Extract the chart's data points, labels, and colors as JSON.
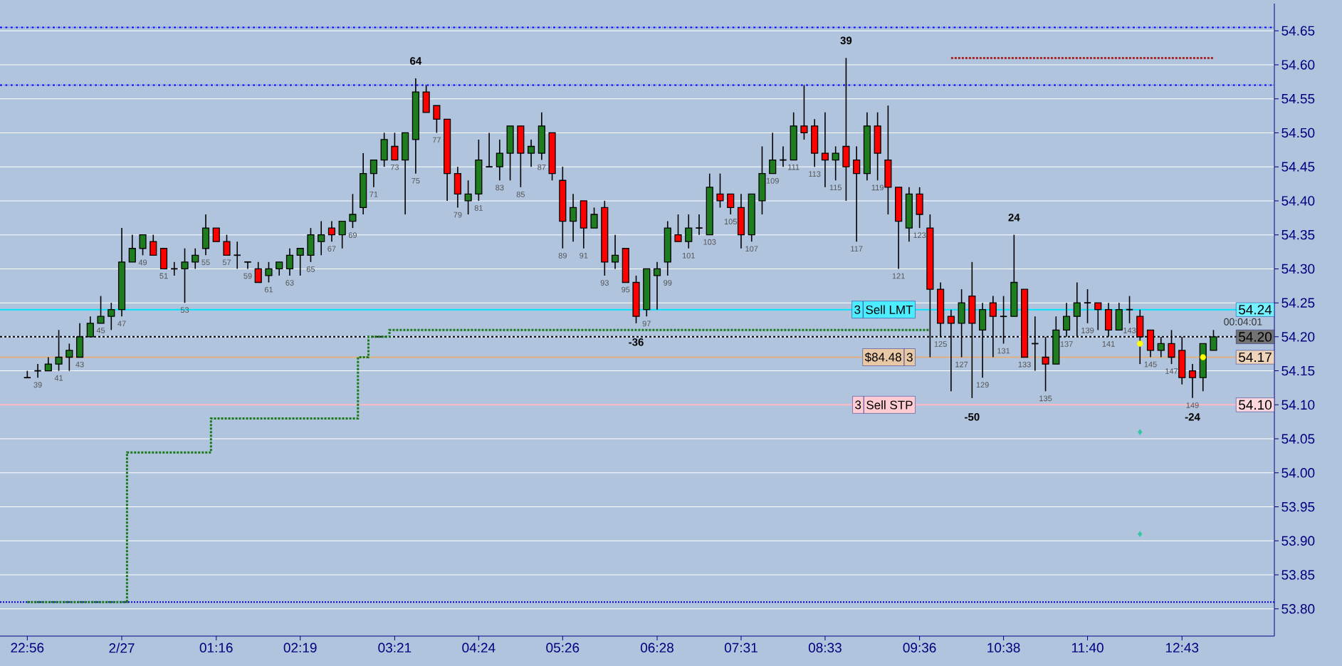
{
  "chart_data": {
    "type": "candlestick",
    "categories": [
      "22:56",
      null,
      null,
      null,
      null,
      null,
      null,
      null,
      null,
      "2/27",
      null,
      null,
      null,
      null,
      null,
      null,
      null,
      null,
      "01:16",
      null,
      null,
      null,
      null,
      null,
      null,
      null,
      "02:19",
      null,
      null,
      null,
      null,
      null,
      null,
      null,
      null,
      "03:21",
      null,
      null,
      null,
      null,
      null,
      null,
      null,
      "04:24",
      null,
      null,
      null,
      null,
      null,
      null,
      null,
      "05:26",
      null,
      null,
      null,
      null,
      null,
      null,
      null,
      null,
      "06:28",
      null,
      null,
      null,
      null,
      null,
      null,
      null,
      "07:31",
      null,
      null,
      null,
      null,
      null,
      null,
      null,
      "08:33",
      null,
      null,
      null,
      null,
      null,
      null,
      null,
      null,
      "09:36",
      null,
      null,
      null,
      null,
      null,
      null,
      null,
      "10:38",
      null,
      null,
      null,
      null,
      null,
      null,
      null,
      "11:40",
      null,
      null,
      null,
      null,
      null,
      null,
      null,
      null,
      "12:43",
      null,
      null,
      null
    ],
    "ohlc": [
      [
        54.14,
        54.15,
        54.14,
        54.14
      ],
      [
        54.15,
        54.16,
        54.14,
        54.15
      ],
      [
        54.15,
        54.17,
        54.15,
        54.16
      ],
      [
        54.16,
        54.21,
        54.15,
        54.17
      ],
      [
        54.17,
        54.19,
        54.15,
        54.18
      ],
      [
        54.17,
        54.22,
        54.17,
        54.2
      ],
      [
        54.2,
        54.23,
        54.2,
        54.22
      ],
      [
        54.22,
        54.26,
        54.22,
        54.23
      ],
      [
        54.23,
        54.25,
        54.21,
        54.24
      ],
      [
        54.24,
        54.36,
        54.23,
        54.31
      ],
      [
        54.31,
        54.35,
        54.31,
        54.33
      ],
      [
        54.33,
        54.35,
        54.32,
        54.35
      ],
      [
        54.34,
        54.35,
        54.32,
        54.32
      ],
      [
        54.33,
        54.33,
        54.3,
        54.3
      ],
      [
        54.3,
        54.31,
        54.29,
        54.3
      ],
      [
        54.3,
        54.33,
        54.25,
        54.31
      ],
      [
        54.31,
        54.33,
        54.3,
        54.32
      ],
      [
        54.33,
        54.38,
        54.32,
        54.36
      ],
      [
        54.36,
        54.36,
        54.34,
        54.34
      ],
      [
        54.34,
        54.35,
        54.32,
        54.32
      ],
      [
        54.32,
        54.34,
        54.3,
        54.32
      ],
      [
        54.31,
        54.31,
        54.3,
        54.31
      ],
      [
        54.3,
        54.31,
        54.28,
        54.28
      ],
      [
        54.29,
        54.31,
        54.28,
        54.3
      ],
      [
        54.3,
        54.31,
        54.29,
        54.31
      ],
      [
        54.3,
        54.33,
        54.29,
        54.32
      ],
      [
        54.32,
        54.33,
        54.29,
        54.33
      ],
      [
        54.32,
        54.36,
        54.31,
        54.35
      ],
      [
        54.34,
        54.37,
        54.32,
        54.35
      ],
      [
        54.36,
        54.37,
        54.34,
        54.35
      ],
      [
        54.35,
        54.37,
        54.33,
        54.37
      ],
      [
        54.37,
        54.41,
        54.36,
        54.38
      ],
      [
        54.39,
        54.47,
        54.38,
        54.44
      ],
      [
        54.44,
        54.46,
        54.42,
        54.46
      ],
      [
        54.46,
        54.5,
        54.45,
        54.49
      ],
      [
        54.48,
        54.5,
        54.46,
        54.46
      ],
      [
        54.46,
        54.5,
        54.38,
        54.5
      ],
      [
        54.49,
        54.58,
        54.44,
        54.56
      ],
      [
        54.56,
        54.57,
        54.53,
        54.53
      ],
      [
        54.54,
        54.54,
        54.5,
        54.52
      ],
      [
        54.52,
        54.52,
        54.4,
        54.44
      ],
      [
        54.44,
        54.45,
        54.39,
        54.41
      ],
      [
        54.4,
        54.43,
        54.38,
        54.41
      ],
      [
        54.41,
        54.49,
        54.4,
        54.46
      ],
      [
        54.45,
        54.5,
        54.45,
        54.45
      ],
      [
        54.45,
        54.49,
        54.43,
        54.47
      ],
      [
        54.47,
        54.51,
        54.43,
        54.51
      ],
      [
        54.51,
        54.51,
        54.42,
        54.47
      ],
      [
        54.47,
        54.49,
        54.45,
        54.48
      ],
      [
        54.47,
        54.53,
        54.46,
        54.51
      ],
      [
        54.5,
        54.5,
        54.43,
        54.44
      ],
      [
        54.43,
        54.45,
        54.33,
        54.37
      ],
      [
        54.37,
        54.41,
        54.34,
        54.39
      ],
      [
        54.4,
        54.4,
        54.33,
        54.36
      ],
      [
        54.36,
        54.39,
        54.36,
        54.38
      ],
      [
        54.39,
        54.4,
        54.29,
        54.31
      ],
      [
        54.31,
        54.35,
        54.3,
        54.32
      ],
      [
        54.33,
        54.33,
        54.28,
        54.28
      ],
      [
        54.28,
        54.29,
        54.22,
        54.23
      ],
      [
        54.24,
        54.3,
        54.23,
        54.3
      ],
      [
        54.29,
        54.31,
        54.24,
        54.3
      ],
      [
        54.31,
        54.37,
        54.29,
        54.36
      ],
      [
        54.35,
        54.38,
        54.34,
        54.34
      ],
      [
        54.34,
        54.38,
        54.33,
        54.36
      ],
      [
        54.36,
        54.38,
        54.35,
        54.36
      ],
      [
        54.35,
        54.44,
        54.35,
        54.42
      ],
      [
        54.41,
        54.44,
        54.39,
        54.4
      ],
      [
        54.41,
        54.41,
        54.38,
        54.39
      ],
      [
        54.39,
        54.41,
        54.33,
        54.35
      ],
      [
        54.35,
        54.41,
        54.34,
        54.41
      ],
      [
        54.4,
        54.48,
        54.38,
        54.44
      ],
      [
        54.44,
        54.5,
        54.44,
        54.46
      ],
      [
        54.46,
        54.48,
        54.45,
        54.46
      ],
      [
        54.46,
        54.53,
        54.46,
        54.51
      ],
      [
        54.51,
        54.57,
        54.49,
        54.5
      ],
      [
        54.51,
        54.52,
        54.45,
        54.47
      ],
      [
        54.47,
        54.53,
        54.42,
        54.46
      ],
      [
        54.46,
        54.48,
        54.43,
        54.47
      ],
      [
        54.48,
        54.61,
        54.4,
        54.45
      ],
      [
        54.46,
        54.48,
        54.34,
        54.44
      ],
      [
        54.44,
        54.53,
        54.43,
        54.51
      ],
      [
        54.51,
        54.53,
        54.43,
        54.47
      ],
      [
        54.46,
        54.54,
        54.38,
        54.42
      ],
      [
        54.42,
        54.42,
        54.3,
        54.37
      ],
      [
        54.36,
        54.42,
        54.34,
        54.41
      ],
      [
        54.41,
        54.42,
        54.36,
        54.38
      ],
      [
        54.36,
        54.38,
        54.17,
        54.27
      ],
      [
        54.27,
        54.28,
        54.2,
        54.22
      ],
      [
        54.23,
        54.24,
        54.12,
        54.22
      ],
      [
        54.22,
        54.27,
        54.17,
        54.25
      ],
      [
        54.26,
        54.31,
        54.11,
        54.22
      ],
      [
        54.21,
        54.25,
        54.14,
        54.24
      ],
      [
        54.25,
        54.26,
        54.17,
        54.23
      ],
      [
        54.23,
        54.26,
        54.19,
        54.23
      ],
      [
        54.23,
        54.35,
        54.23,
        54.28
      ],
      [
        54.27,
        54.27,
        54.17,
        54.17
      ],
      [
        54.19,
        54.23,
        54.15,
        54.19
      ],
      [
        54.17,
        54.2,
        54.12,
        54.16
      ],
      [
        54.16,
        54.23,
        54.16,
        54.21
      ],
      [
        54.21,
        54.25,
        54.2,
        54.23
      ],
      [
        54.23,
        54.28,
        54.2,
        54.25
      ],
      [
        54.25,
        54.27,
        54.22,
        54.25
      ],
      [
        54.25,
        54.25,
        54.21,
        54.24
      ],
      [
        54.24,
        54.25,
        54.2,
        54.21
      ],
      [
        54.21,
        54.25,
        54.21,
        54.24
      ],
      [
        54.24,
        54.26,
        54.22,
        54.24
      ],
      [
        54.23,
        54.24,
        54.16,
        54.2
      ],
      [
        54.21,
        54.21,
        54.17,
        54.18
      ],
      [
        54.18,
        54.2,
        54.17,
        54.19
      ],
      [
        54.19,
        54.21,
        54.16,
        54.17
      ],
      [
        54.18,
        54.2,
        54.13,
        54.14
      ],
      [
        54.15,
        54.16,
        54.11,
        54.14
      ],
      [
        54.14,
        54.19,
        54.12,
        54.19
      ],
      [
        54.18,
        54.21,
        54.18,
        54.2
      ]
    ],
    "colors": [
      "#000000",
      "#000000",
      "#1e7d1e",
      "#1e7d1e",
      "#1e7d1e",
      "#1e7d1e",
      "#1e7d1e",
      "#1e7d1e",
      "#1e7d1e",
      "#1e7d1e",
      "#1e7d1e",
      "#1e7d1e",
      "#ff0000",
      "#ff0000",
      "#000000",
      "#1e7d1e",
      "#1e7d1e",
      "#1e7d1e",
      "#ff0000",
      "#ff0000",
      "#000000",
      "#000000",
      "#ff0000",
      "#1e7d1e",
      "#1e7d1e",
      "#1e7d1e",
      "#1e7d1e",
      "#1e7d1e",
      "#1e7d1e",
      "#ff0000",
      "#1e7d1e",
      "#1e7d1e",
      "#1e7d1e",
      "#1e7d1e",
      "#1e7d1e",
      "#ff0000",
      "#1e7d1e",
      "#1e7d1e",
      "#ff0000",
      "#ff0000",
      "#ff0000",
      "#ff0000",
      "#1e7d1e",
      "#1e7d1e",
      "#000000",
      "#1e7d1e",
      "#1e7d1e",
      "#ff0000",
      "#1e7d1e",
      "#1e7d1e",
      "#ff0000",
      "#ff0000",
      "#1e7d1e",
      "#ff0000",
      "#1e7d1e",
      "#ff0000",
      "#1e7d1e",
      "#ff0000",
      "#ff0000",
      "#1e7d1e",
      "#1e7d1e",
      "#1e7d1e",
      "#ff0000",
      "#1e7d1e",
      "#000000",
      "#1e7d1e",
      "#ff0000",
      "#ff0000",
      "#ff0000",
      "#1e7d1e",
      "#1e7d1e",
      "#1e7d1e",
      "#000000",
      "#1e7d1e",
      "#ff0000",
      "#ff0000",
      "#ff0000",
      "#1e7d1e",
      "#ff0000",
      "#ff0000",
      "#1e7d1e",
      "#ff0000",
      "#ff0000",
      "#ff0000",
      "#1e7d1e",
      "#ff0000",
      "#ff0000",
      "#ff0000",
      "#ff0000",
      "#1e7d1e",
      "#ff0000",
      "#1e7d1e",
      "#ff0000",
      "#000000",
      "#1e7d1e",
      "#ff0000",
      "#000000",
      "#ff0000",
      "#1e7d1e",
      "#1e7d1e",
      "#1e7d1e",
      "#000000",
      "#ff0000",
      "#ff0000",
      "#1e7d1e",
      "#000000",
      "#ff0000",
      "#ff0000",
      "#1e7d1e",
      "#ff0000",
      "#ff0000",
      "#ff0000",
      "#1e7d1e",
      "#1e7d1e"
    ],
    "value_labels": [
      null,
      "39",
      null,
      "41",
      null,
      "43",
      null,
      "45",
      null,
      "47",
      null,
      "49",
      null,
      "51",
      null,
      "53",
      null,
      "55",
      null,
      "57",
      null,
      "59",
      null,
      "61",
      null,
      "63",
      null,
      "65",
      null,
      "67",
      null,
      "69",
      null,
      "71",
      null,
      "73",
      null,
      "75",
      null,
      "77",
      null,
      "79",
      null,
      "81",
      null,
      "83",
      null,
      "85",
      null,
      "87",
      null,
      "89",
      null,
      "91",
      null,
      "93",
      null,
      "95",
      null,
      "97",
      null,
      "99",
      null,
      "101",
      null,
      "103",
      null,
      "105",
      null,
      "107",
      null,
      "109",
      null,
      "111",
      null,
      "113",
      null,
      "115",
      null,
      "117",
      null,
      "119",
      null,
      "121",
      null,
      "123",
      null,
      "125",
      null,
      "127",
      null,
      "129",
      null,
      "131",
      null,
      "133",
      null,
      "135",
      null,
      "137",
      null,
      "139",
      null,
      "141",
      null,
      "143",
      null,
      "145",
      null,
      "147",
      null,
      "149",
      null,
      null
    ],
    "series": [
      {
        "type": "step",
        "color": "#1a7a1a",
        "line_style": "dotted",
        "values": [
          53.81,
          53.81,
          53.81,
          53.81,
          53.81,
          53.81,
          53.81,
          53.81,
          53.81,
          53.81,
          54.03,
          54.03,
          54.03,
          54.03,
          54.03,
          54.03,
          54.03,
          54.03,
          54.08,
          54.08,
          54.08,
          54.08,
          54.08,
          54.08,
          54.08,
          54.08,
          54.08,
          54.08,
          54.08,
          54.08,
          54.08,
          54.08,
          54.17,
          54.2,
          54.2,
          54.21,
          54.21,
          54.21,
          54.21,
          54.21,
          54.21,
          54.21,
          54.21,
          54.21,
          54.21,
          54.21,
          54.21,
          54.21,
          54.21,
          54.21,
          54.21,
          54.21,
          54.21,
          54.21,
          54.21,
          54.21,
          54.21,
          54.21,
          54.21,
          54.21,
          54.21,
          54.21,
          54.21,
          54.21,
          54.21,
          54.21,
          54.21,
          54.21,
          54.21,
          54.21,
          54.21,
          54.21,
          54.21,
          54.21,
          54.21,
          54.21,
          54.21,
          54.21,
          54.21,
          54.21,
          54.21,
          54.21,
          54.21,
          54.21,
          54.21,
          54.21,
          54.21,
          null,
          null,
          null,
          null,
          null,
          null,
          null,
          null,
          null,
          null,
          null,
          null,
          null,
          null,
          null,
          null,
          null,
          null,
          null,
          null,
          null,
          null,
          null,
          null,
          null,
          null,
          null
        ]
      },
      {
        "type": "line",
        "color": "#a52a2a",
        "line_style": "dotted",
        "values": [
          null,
          null,
          null,
          null,
          null,
          null,
          null,
          null,
          null,
          null,
          null,
          null,
          null,
          null,
          null,
          null,
          null,
          null,
          null,
          null,
          null,
          null,
          null,
          null,
          null,
          null,
          null,
          null,
          null,
          null,
          null,
          null,
          null,
          null,
          null,
          null,
          null,
          null,
          null,
          null,
          null,
          null,
          null,
          null,
          null,
          null,
          null,
          null,
          null,
          null,
          null,
          null,
          null,
          null,
          null,
          null,
          null,
          null,
          null,
          null,
          null,
          null,
          null,
          null,
          null,
          null,
          null,
          null,
          null,
          null,
          null,
          null,
          null,
          null,
          null,
          null,
          null,
          null,
          null,
          null,
          null,
          null,
          null,
          null,
          null,
          null,
          null,
          null,
          54.61,
          54.61,
          54.61,
          54.61,
          54.61,
          54.61,
          54.61,
          54.61,
          54.61,
          54.61,
          54.61,
          54.61,
          54.61,
          54.61,
          54.61,
          54.61,
          54.61,
          54.61,
          54.61,
          54.61,
          54.61,
          54.61,
          54.61,
          54.61,
          54.61,
          54.61
        ]
      },
      {
        "type": "scatter",
        "color": "#ffff00",
        "marker": "circle",
        "values": [
          null,
          null,
          null,
          null,
          null,
          null,
          null,
          null,
          null,
          null,
          null,
          null,
          null,
          null,
          null,
          null,
          null,
          null,
          null,
          null,
          null,
          null,
          null,
          null,
          null,
          null,
          null,
          null,
          null,
          null,
          null,
          null,
          null,
          null,
          null,
          null,
          null,
          null,
          null,
          null,
          null,
          null,
          null,
          null,
          null,
          null,
          null,
          null,
          null,
          null,
          null,
          null,
          null,
          null,
          null,
          null,
          null,
          null,
          null,
          null,
          null,
          null,
          null,
          null,
          null,
          null,
          null,
          null,
          null,
          null,
          null,
          null,
          null,
          null,
          null,
          null,
          null,
          null,
          null,
          null,
          null,
          null,
          null,
          null,
          null,
          null,
          null,
          null,
          null,
          null,
          null,
          null,
          null,
          null,
          null,
          null,
          null,
          null,
          null,
          null,
          null,
          null,
          null,
          null,
          null,
          null,
          54.19,
          null,
          null,
          null,
          null,
          null,
          54.17,
          null
        ]
      },
      {
        "type": "scatter",
        "color": "#33c8a0",
        "marker": "diamond",
        "values": [
          null,
          null,
          null,
          null,
          null,
          null,
          null,
          null,
          null,
          null,
          null,
          null,
          null,
          null,
          null,
          null,
          null,
          null,
          null,
          null,
          null,
          null,
          null,
          null,
          null,
          null,
          null,
          null,
          null,
          null,
          null,
          null,
          null,
          null,
          null,
          null,
          null,
          null,
          null,
          null,
          null,
          null,
          null,
          null,
          null,
          null,
          null,
          null,
          null,
          null,
          null,
          null,
          null,
          null,
          null,
          null,
          null,
          null,
          null,
          null,
          null,
          null,
          null,
          null,
          null,
          null,
          null,
          null,
          null,
          null,
          null,
          null,
          null,
          null,
          null,
          null,
          null,
          null,
          null,
          null,
          null,
          null,
          null,
          null,
          null,
          null,
          null,
          null,
          null,
          null,
          null,
          null,
          null,
          null,
          null,
          null,
          null,
          null,
          null,
          null,
          null,
          null,
          null,
          null,
          null,
          null,
          54.06,
          null,
          null,
          null,
          null,
          null,
          null,
          null
        ]
      },
      {
        "type": "scatter",
        "color": "#33c8a0",
        "marker": "diamond",
        "values": [
          null,
          null,
          null,
          null,
          null,
          null,
          null,
          null,
          null,
          null,
          null,
          null,
          null,
          null,
          null,
          null,
          null,
          null,
          null,
          null,
          null,
          null,
          null,
          null,
          null,
          null,
          null,
          null,
          null,
          null,
          null,
          null,
          null,
          null,
          null,
          null,
          null,
          null,
          null,
          null,
          null,
          null,
          null,
          null,
          null,
          null,
          null,
          null,
          null,
          null,
          null,
          null,
          null,
          null,
          null,
          null,
          null,
          null,
          null,
          null,
          null,
          null,
          null,
          null,
          null,
          null,
          null,
          null,
          null,
          null,
          null,
          null,
          null,
          null,
          null,
          null,
          null,
          null,
          null,
          null,
          null,
          null,
          null,
          null,
          null,
          null,
          null,
          null,
          null,
          null,
          null,
          null,
          null,
          null,
          null,
          null,
          null,
          null,
          null,
          null,
          null,
          null,
          null,
          null,
          null,
          null,
          53.91,
          null,
          null,
          null,
          null,
          null,
          null,
          null
        ]
      }
    ],
    "ref_lines": [
      {
        "axis": "y",
        "value": 54.655,
        "color": "#0000ff",
        "line_style": "dashdot"
      },
      {
        "axis": "y",
        "value": 54.57,
        "color": "#0000ff",
        "line_style": "dashdot"
      },
      {
        "axis": "y",
        "value": 53.81,
        "color": "#0000cd",
        "line_style": "dotted"
      },
      {
        "axis": "y",
        "value": 54.24,
        "label": "54.24",
        "color": "#00e5ff",
        "line_style": "solid"
      },
      {
        "axis": "y",
        "value": 54.2,
        "label": "54.20",
        "color": "#000000",
        "line_style": "dashed"
      },
      {
        "axis": "y",
        "value": 54.17,
        "label": "54.17",
        "color": "#e0b080",
        "line_style": "solid"
      },
      {
        "axis": "y",
        "value": 54.1,
        "label": "54.10",
        "color": "#ffb6c1",
        "line_style": "solid"
      }
    ],
    "annotations": [
      "64",
      "39",
      "24",
      "-36",
      "-50",
      "-24",
      {
        "text": "3",
        "y": 54.24
      },
      {
        "text": "Sell LMT",
        "y": 54.24
      },
      {
        "text": "$84.48",
        "y": 54.17
      },
      {
        "text": "3",
        "y": 54.17
      },
      {
        "text": "3",
        "y": 54.1
      },
      {
        "text": "Sell STP",
        "y": 54.1
      },
      "00:04:01"
    ],
    "ylim": [
      53.76,
      54.69
    ],
    "yticks": [
      {
        "value": 53.8,
        "label": "53.80"
      },
      53.85,
      {
        "value": 53.9,
        "label": "53.90"
      },
      53.95,
      {
        "value": 54.0,
        "label": "54.00"
      },
      54.05,
      {
        "value": 54.1,
        "label": "54.10"
      },
      54.15,
      {
        "value": 54.2,
        "label": "54.20"
      },
      54.25,
      {
        "value": 54.3,
        "label": "54.30"
      },
      54.35,
      {
        "value": 54.4,
        "label": "54.40"
      },
      54.45,
      {
        "value": 54.5,
        "label": "54.50"
      },
      54.55,
      {
        "value": 54.6,
        "label": "54.60"
      },
      54.65
    ],
    "grid": "y"
  }
}
